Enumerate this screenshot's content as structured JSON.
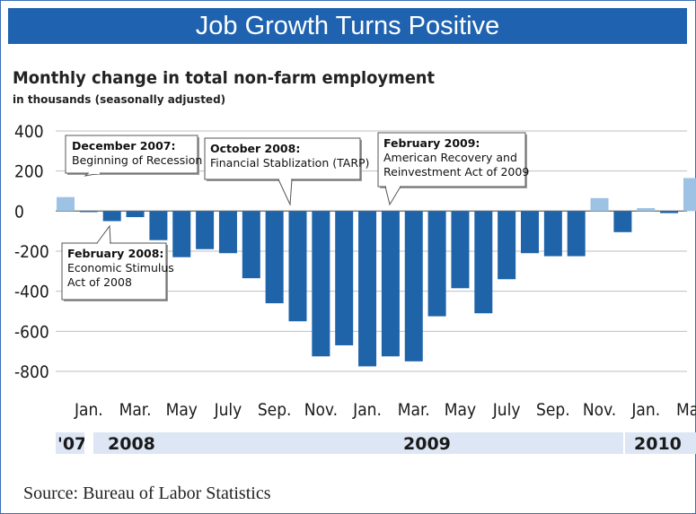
{
  "header": {
    "banner": "Job Growth Turns Positive"
  },
  "chart_data": {
    "type": "bar",
    "title": "Monthly change in total non-farm employment",
    "subtitle": "in thousands (seasonally adjusted)",
    "ylim": [
      -800,
      400
    ],
    "yticks": [
      "400",
      "200",
      "0",
      "-200",
      "-400",
      "-600",
      "-800"
    ],
    "xtick_labels": [
      "Jan.",
      "Mar.",
      "May",
      "July",
      "Sep.",
      "Nov.",
      "Jan.",
      "Mar.",
      "May",
      "July",
      "Sep.",
      "Nov.",
      "Jan.",
      "Mar."
    ],
    "years": [
      "'07",
      "2008",
      "2009",
      "2010"
    ],
    "months": [
      "Dec 2007",
      "Jan 2008",
      "Feb 2008",
      "Mar 2008",
      "Apr 2008",
      "May 2008",
      "Jun 2008",
      "Jul 2008",
      "Aug 2008",
      "Sep 2008",
      "Oct 2008",
      "Nov 2008",
      "Dec 2008",
      "Jan 2009",
      "Feb 2009",
      "Mar 2009",
      "Apr 2009",
      "May 2009",
      "Jun 2009",
      "Jul 2009",
      "Aug 2009",
      "Sep 2009",
      "Oct 2009",
      "Nov 2009",
      "Dec 2009",
      "Jan 2010",
      "Feb 2010",
      "Mar 2010"
    ],
    "values": [
      70,
      -5,
      -50,
      -30,
      -145,
      -230,
      -190,
      -210,
      -335,
      -460,
      -550,
      -725,
      -670,
      -775,
      -725,
      -750,
      -525,
      -385,
      -510,
      -340,
      -210,
      -225,
      -225,
      65,
      -105,
      15,
      -10,
      165
    ],
    "grid": true,
    "colors": {
      "negative": "#1f63a8",
      "positive": "#9ec2e4",
      "year_band": "#dde6f4"
    },
    "annotations": [
      {
        "title": "December 2007:",
        "lines": [
          "Beginning of Recession"
        ],
        "target": "Dec 2007"
      },
      {
        "title": "October 2008:",
        "lines": [
          "Financial Stablization (TARP)"
        ],
        "target": "Oct 2008"
      },
      {
        "title": "February 2009:",
        "lines": [
          "American Recovery and",
          "Reinvestment Act of 2009"
        ],
        "target": "Feb 2009"
      },
      {
        "title": "February 2008:",
        "lines": [
          "Economic Stimulus",
          "Act of 2008"
        ],
        "target": "Feb 2008"
      }
    ]
  },
  "footer": {
    "source": "Source: Bureau of Labor Statistics"
  }
}
